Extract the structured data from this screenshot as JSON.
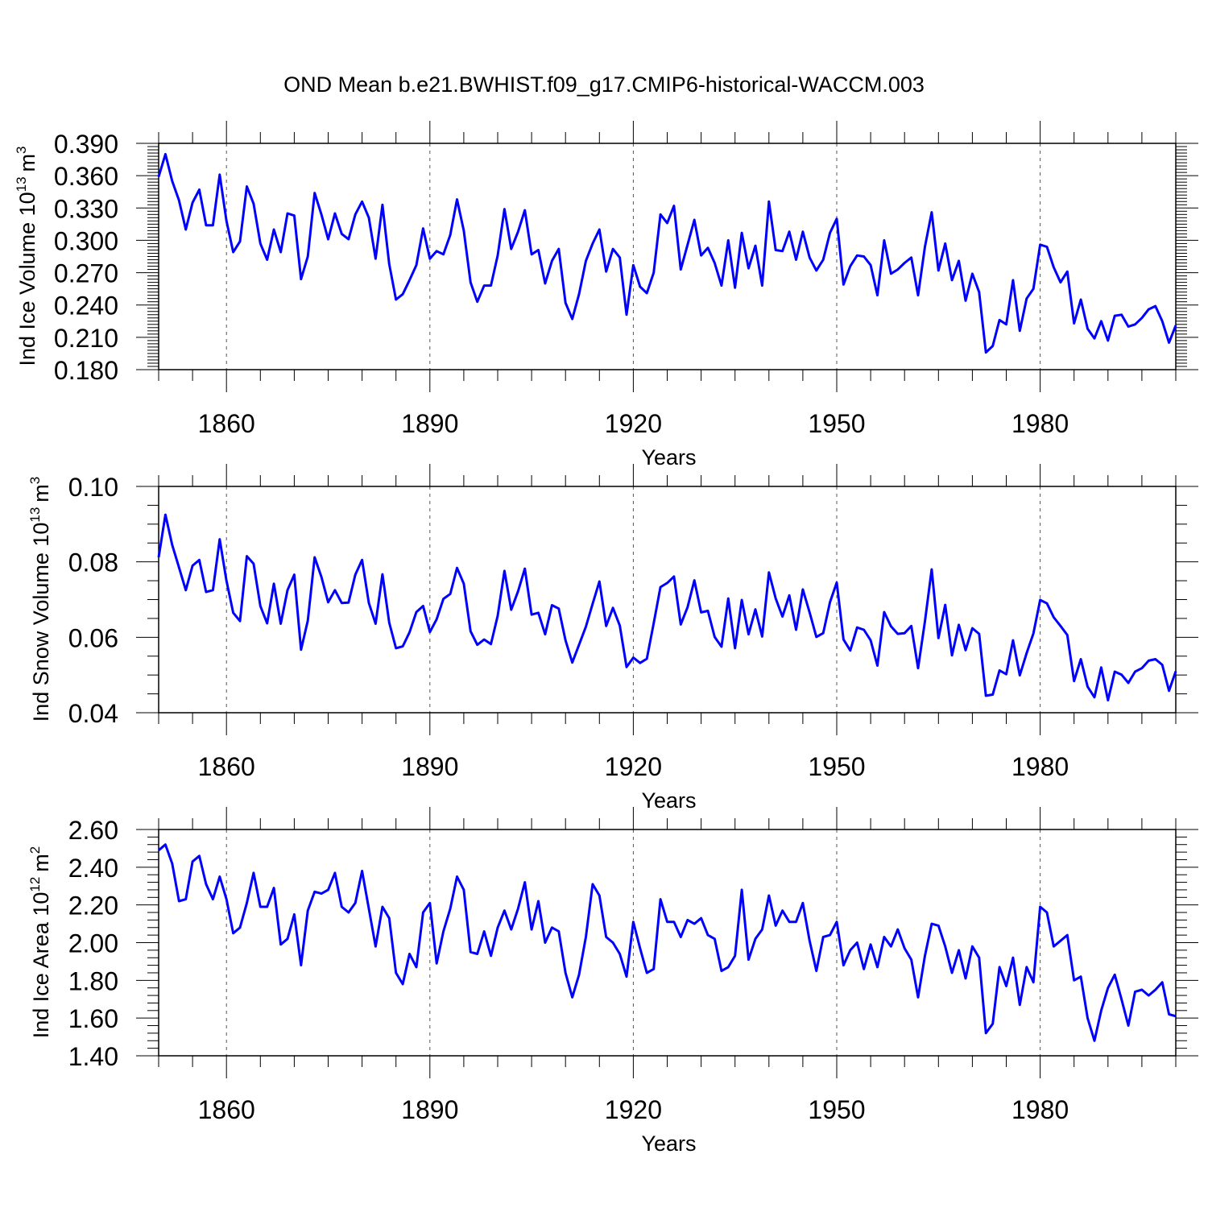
{
  "figure_title": "OND Mean b.e21.BWHIST.f09_g17.CMIP6-historical-WACCM.003",
  "line_color": "#0000ff",
  "chart_data": [
    {
      "type": "line",
      "title": "OND Mean b.e21.BWHIST.f09_g17.CMIP6-historical-WACCM.003",
      "xlabel": "Years",
      "ylabel_main": "Ind Ice Volume 10",
      "ylabel_exp": "13",
      "ylabel_unit": "m",
      "ylabel_unit_exp": "3",
      "xlim": [
        1850,
        2000
      ],
      "ylim": [
        0.18,
        0.39
      ],
      "xticks": [
        1860,
        1890,
        1920,
        1950,
        1980
      ],
      "xtick_labels": [
        "1860",
        "1890",
        "1920",
        "1950",
        "1980"
      ],
      "yticks": [
        0.18,
        0.21,
        0.24,
        0.27,
        0.3,
        0.33,
        0.36,
        0.39
      ],
      "ytick_labels": [
        "0.180",
        "0.210",
        "0.240",
        "0.270",
        "0.300",
        "0.330",
        "0.360",
        "0.390"
      ],
      "grid": "dashed vertical at major x ticks",
      "x_start": 1850,
      "series": [
        {
          "name": "Ind Ice Volume",
          "values": [
            0.359,
            0.38,
            0.355,
            0.337,
            0.31,
            0.335,
            0.347,
            0.314,
            0.314,
            0.361,
            0.318,
            0.289,
            0.299,
            0.35,
            0.334,
            0.297,
            0.282,
            0.31,
            0.289,
            0.325,
            0.323,
            0.264,
            0.285,
            0.344,
            0.324,
            0.301,
            0.325,
            0.306,
            0.301,
            0.324,
            0.336,
            0.321,
            0.283,
            0.333,
            0.278,
            0.245,
            0.25,
            0.263,
            0.277,
            0.311,
            0.283,
            0.29,
            0.287,
            0.305,
            0.338,
            0.309,
            0.261,
            0.243,
            0.258,
            0.258,
            0.286,
            0.329,
            0.292,
            0.308,
            0.328,
            0.287,
            0.291,
            0.26,
            0.281,
            0.292,
            0.242,
            0.227,
            0.25,
            0.281,
            0.297,
            0.31,
            0.271,
            0.292,
            0.284,
            0.231,
            0.277,
            0.257,
            0.251,
            0.27,
            0.324,
            0.316,
            0.332,
            0.273,
            0.296,
            0.319,
            0.286,
            0.293,
            0.279,
            0.258,
            0.3,
            0.256,
            0.307,
            0.274,
            0.295,
            0.258,
            0.336,
            0.291,
            0.29,
            0.308,
            0.282,
            0.308,
            0.284,
            0.272,
            0.282,
            0.307,
            0.32,
            0.259,
            0.276,
            0.286,
            0.285,
            0.277,
            0.249,
            0.3,
            0.269,
            0.273,
            0.279,
            0.284,
            0.249,
            0.294,
            0.326,
            0.272,
            0.297,
            0.263,
            0.281,
            0.244,
            0.269,
            0.252,
            0.196,
            0.202,
            0.226,
            0.222,
            0.263,
            0.216,
            0.246,
            0.255,
            0.296,
            0.294,
            0.275,
            0.261,
            0.271,
            0.223,
            0.245,
            0.218,
            0.209,
            0.225,
            0.207,
            0.23,
            0.231,
            0.22,
            0.222,
            0.228,
            0.236,
            0.239,
            0.225,
            0.205,
            0.221
          ]
        }
      ]
    },
    {
      "type": "line",
      "xlabel": "Years",
      "ylabel_main": "Ind Snow Volume 10",
      "ylabel_exp": "13",
      "ylabel_unit": "m",
      "ylabel_unit_exp": "3",
      "xlim": [
        1850,
        2000
      ],
      "ylim": [
        0.04,
        0.1
      ],
      "xticks": [
        1860,
        1890,
        1920,
        1950,
        1980
      ],
      "xtick_labels": [
        "1860",
        "1890",
        "1920",
        "1950",
        "1980"
      ],
      "yticks": [
        0.04,
        0.06,
        0.08,
        0.1
      ],
      "ytick_labels": [
        "0.04",
        "0.06",
        "0.08",
        "0.10"
      ],
      "grid": "dashed vertical at major x ticks",
      "x_start": 1850,
      "series": [
        {
          "name": "Ind Snow Volume",
          "values": [
            0.0812,
            0.0925,
            0.0845,
            0.0785,
            0.0725,
            0.079,
            0.0805,
            0.072,
            0.0725,
            0.086,
            0.075,
            0.0665,
            0.0643,
            0.0815,
            0.0795,
            0.0683,
            0.0637,
            0.0742,
            0.0636,
            0.0725,
            0.0766,
            0.0567,
            0.0644,
            0.0812,
            0.076,
            0.0693,
            0.0725,
            0.0691,
            0.0692,
            0.0766,
            0.0805,
            0.0691,
            0.0636,
            0.0767,
            0.0639,
            0.0571,
            0.0576,
            0.0613,
            0.0667,
            0.0683,
            0.0614,
            0.0648,
            0.0702,
            0.0715,
            0.0784,
            0.0742,
            0.0616,
            0.058,
            0.0594,
            0.0582,
            0.0657,
            0.0776,
            0.0673,
            0.0722,
            0.0782,
            0.066,
            0.0665,
            0.0608,
            0.0685,
            0.0676,
            0.0592,
            0.0533,
            0.058,
            0.0628,
            0.0689,
            0.0748,
            0.063,
            0.0678,
            0.0631,
            0.0521,
            0.0546,
            0.0532,
            0.0543,
            0.0637,
            0.0733,
            0.0744,
            0.0761,
            0.0634,
            0.068,
            0.0751,
            0.0666,
            0.067,
            0.0601,
            0.0575,
            0.0703,
            0.0571,
            0.0699,
            0.0608,
            0.0674,
            0.0602,
            0.0772,
            0.0703,
            0.0655,
            0.0711,
            0.062,
            0.0727,
            0.0666,
            0.0601,
            0.0611,
            0.0693,
            0.0745,
            0.0594,
            0.0565,
            0.0626,
            0.062,
            0.0592,
            0.0525,
            0.0667,
            0.0629,
            0.0609,
            0.0611,
            0.063,
            0.0518,
            0.0642,
            0.078,
            0.0598,
            0.0686,
            0.0552,
            0.0633,
            0.0566,
            0.0624,
            0.0609,
            0.0445,
            0.0448,
            0.0512,
            0.0502,
            0.0592,
            0.0499,
            0.0558,
            0.061,
            0.0699,
            0.069,
            0.0653,
            0.063,
            0.0606,
            0.0484,
            0.0542,
            0.0469,
            0.0441,
            0.052,
            0.0433,
            0.0509,
            0.0501,
            0.0479,
            0.0509,
            0.0518,
            0.0538,
            0.0542,
            0.0527,
            0.0458,
            0.051
          ]
        }
      ]
    },
    {
      "type": "line",
      "xlabel": "Years",
      "ylabel_main": "Ind Ice Area 10",
      "ylabel_exp": "12",
      "ylabel_unit": "m",
      "ylabel_unit_exp": "2",
      "xlim": [
        1850,
        2000
      ],
      "ylim": [
        1.4,
        2.6
      ],
      "xticks": [
        1860,
        1890,
        1920,
        1950,
        1980
      ],
      "xtick_labels": [
        "1860",
        "1890",
        "1920",
        "1950",
        "1980"
      ],
      "yticks": [
        1.4,
        1.6,
        1.8,
        2.0,
        2.2,
        2.4,
        2.6
      ],
      "ytick_labels": [
        "1.40",
        "1.60",
        "1.80",
        "2.00",
        "2.20",
        "2.40",
        "2.60"
      ],
      "grid": "dashed vertical at major x ticks",
      "x_start": 1850,
      "series": [
        {
          "name": "Ind Ice Area",
          "values": [
            2.49,
            2.52,
            2.42,
            2.22,
            2.23,
            2.43,
            2.46,
            2.31,
            2.23,
            2.35,
            2.23,
            2.05,
            2.08,
            2.21,
            2.37,
            2.19,
            2.19,
            2.29,
            1.99,
            2.02,
            2.15,
            1.88,
            2.17,
            2.27,
            2.26,
            2.28,
            2.37,
            2.19,
            2.16,
            2.21,
            2.38,
            2.18,
            1.98,
            2.19,
            2.13,
            1.84,
            1.78,
            1.94,
            1.87,
            2.16,
            2.21,
            1.89,
            2.06,
            2.18,
            2.35,
            2.28,
            1.95,
            1.94,
            2.06,
            1.93,
            2.08,
            2.17,
            2.07,
            2.18,
            2.32,
            2.07,
            2.22,
            2.0,
            2.08,
            2.06,
            1.84,
            1.71,
            1.83,
            2.03,
            2.31,
            2.25,
            2.03,
            2.0,
            1.94,
            1.82,
            2.11,
            1.97,
            1.84,
            1.86,
            2.23,
            2.11,
            2.11,
            2.03,
            2.12,
            2.1,
            2.13,
            2.04,
            2.02,
            1.85,
            1.87,
            1.93,
            2.28,
            1.91,
            2.02,
            2.07,
            2.25,
            2.09,
            2.17,
            2.11,
            2.11,
            2.21,
            2.01,
            1.85,
            2.03,
            2.04,
            2.11,
            1.88,
            1.96,
            2.0,
            1.86,
            1.99,
            1.87,
            2.03,
            1.98,
            2.07,
            1.97,
            1.91,
            1.71,
            1.93,
            2.1,
            2.09,
            1.98,
            1.84,
            1.96,
            1.81,
            1.98,
            1.92,
            1.52,
            1.57,
            1.87,
            1.77,
            1.92,
            1.67,
            1.87,
            1.79,
            2.19,
            2.16,
            1.98,
            2.01,
            2.04,
            1.8,
            1.82,
            1.6,
            1.48,
            1.64,
            1.76,
            1.83,
            1.7,
            1.56,
            1.74,
            1.75,
            1.72,
            1.75,
            1.79,
            1.62,
            1.61
          ]
        }
      ]
    }
  ]
}
